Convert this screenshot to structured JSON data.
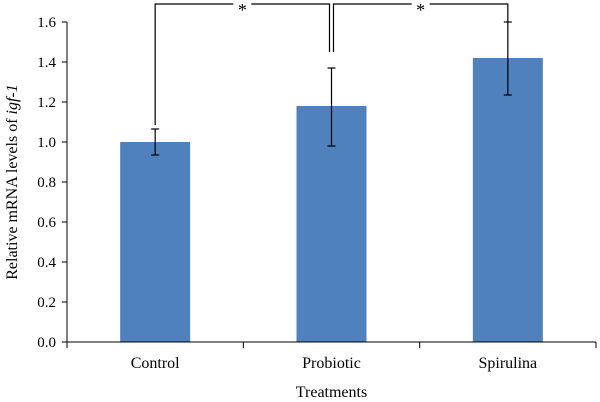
{
  "chart_data": {
    "type": "bar",
    "categories": [
      "Control",
      "Probiotic",
      "Spirulina"
    ],
    "values": [
      1.0,
      1.18,
      1.42
    ],
    "error_low": [
      0.935,
      0.98,
      1.235
    ],
    "error_high": [
      1.065,
      1.37,
      1.6
    ],
    "xlabel": "Treatments",
    "ylabel_prefix": "Relative mRNA levels of ",
    "ylabel_gene": "igf-1",
    "ylim": [
      0,
      1.6
    ],
    "yticks": [
      "0.0",
      "0.2",
      "0.4",
      "0.6",
      "0.8",
      "1.0",
      "1.2",
      "1.4",
      "1.6"
    ],
    "grid": false,
    "legend": "none",
    "bar_color": "#4f81bd",
    "significance": [
      {
        "from": "Control",
        "to": "Probiotic",
        "label": "*"
      },
      {
        "from": "Probiotic",
        "to": "Spirulina",
        "label": "*"
      }
    ]
  }
}
